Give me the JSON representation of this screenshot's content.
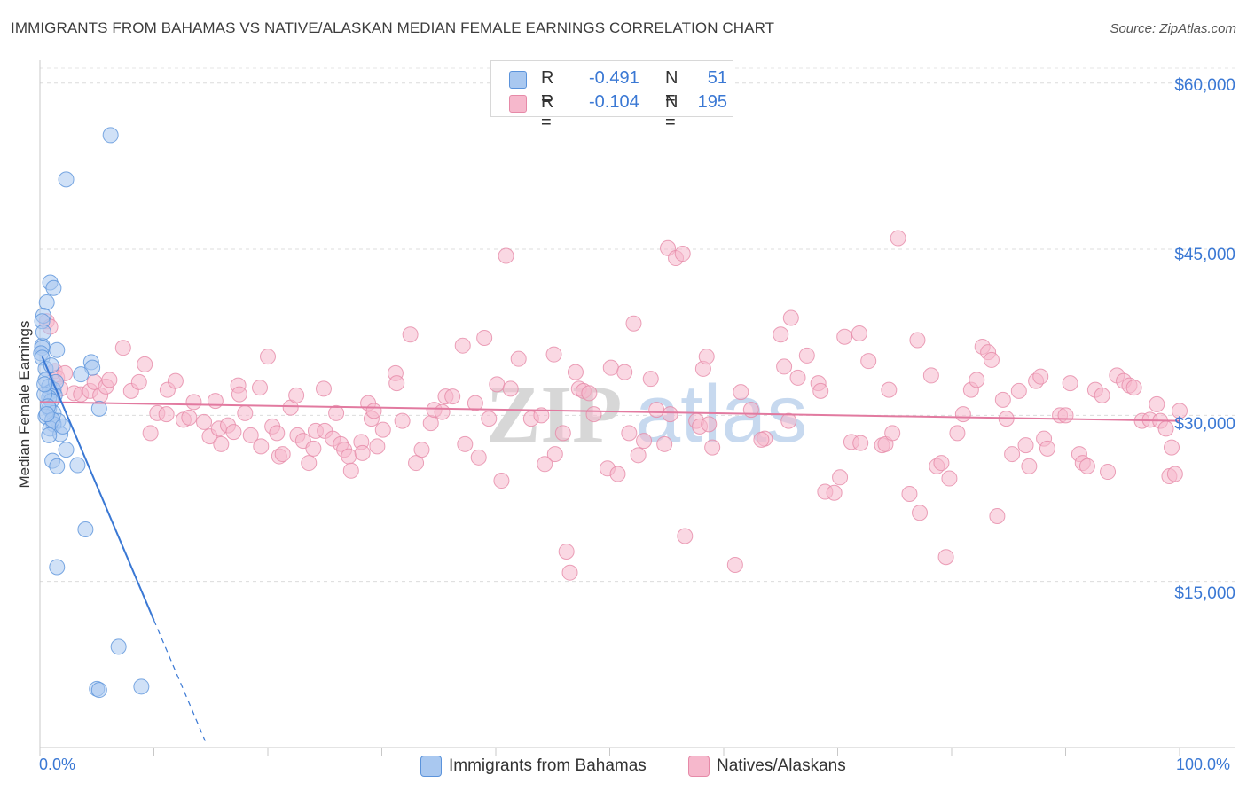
{
  "header": {
    "title": "IMMIGRANTS FROM BAHAMAS VS NATIVE/ALASKAN MEDIAN FEMALE EARNINGS CORRELATION CHART",
    "source": "Source: ZipAtlas.com"
  },
  "legend": {
    "r_label": "R =",
    "n_label": "N =",
    "rows": [
      {
        "r": "-0.491",
        "n": "51",
        "color": "#a9c8f0",
        "border": "#5b93db"
      },
      {
        "r": "-0.104",
        "n": "195",
        "color": "#f6b8cc",
        "border": "#e68aa8"
      }
    ]
  },
  "bottom_legend": [
    {
      "label": "Immigrants from Bahamas",
      "color": "#a9c8f0",
      "border": "#5b93db"
    },
    {
      "label": "Natives/Alaskans",
      "color": "#f6b8cc",
      "border": "#e68aa8"
    }
  ],
  "watermark": {
    "zip": "ZIP",
    "atlas": "atlas"
  },
  "chart_data": {
    "type": "scatter",
    "title": "IMMIGRANTS FROM BAHAMAS VS NATIVE/ALASKAN MEDIAN FEMALE EARNINGS CORRELATION CHART",
    "xlabel": "",
    "ylabel": "Median Female Earnings",
    "xlim": [
      0,
      100
    ],
    "ylim": [
      0,
      61500
    ],
    "x_tick_labels": [
      "0.0%",
      "100.0%"
    ],
    "y_ticks": [
      {
        "value": 15000,
        "label": "$15,000"
      },
      {
        "value": 30000,
        "label": "$30,000"
      },
      {
        "value": 45000,
        "label": "$45,000"
      },
      {
        "value": 60000,
        "label": "$60,000"
      }
    ],
    "grid": "horizontal dashed",
    "series": [
      {
        "name": "Immigrants from Bahamas",
        "color": "#a9c8f0",
        "edge": "#5b93db",
        "trend": {
          "x0": 0.2,
          "y0": 35300,
          "x1": 10.0,
          "y1": 11500,
          "dash_to_x": 14.5,
          "dash_to_y": 600,
          "color": "#3a78d4"
        },
        "points": [
          [
            6.2,
            55300
          ],
          [
            2.3,
            51300
          ],
          [
            0.9,
            42000
          ],
          [
            1.2,
            41500
          ],
          [
            0.6,
            40200
          ],
          [
            0.3,
            39000
          ],
          [
            0.2,
            38500
          ],
          [
            0.2,
            36300
          ],
          [
            0.2,
            36100
          ],
          [
            1.5,
            35900
          ],
          [
            0.1,
            35600
          ],
          [
            0.2,
            35200
          ],
          [
            4.5,
            34800
          ],
          [
            4.6,
            34300
          ],
          [
            0.5,
            34200
          ],
          [
            3.6,
            33700
          ],
          [
            0.5,
            33200
          ],
          [
            0.8,
            32600
          ],
          [
            1.2,
            32300
          ],
          [
            0.9,
            32100
          ],
          [
            1.3,
            31800
          ],
          [
            0.8,
            31600
          ],
          [
            1.0,
            31300
          ],
          [
            0.8,
            30600
          ],
          [
            5.2,
            30600
          ],
          [
            1.2,
            30200
          ],
          [
            0.5,
            29900
          ],
          [
            1.6,
            29500
          ],
          [
            1.2,
            29200
          ],
          [
            0.9,
            28800
          ],
          [
            1.8,
            28300
          ],
          [
            0.8,
            28200
          ],
          [
            2.3,
            26900
          ],
          [
            1.1,
            25900
          ],
          [
            3.3,
            25500
          ],
          [
            1.5,
            25400
          ],
          [
            4.0,
            19700
          ],
          [
            1.5,
            16300
          ],
          [
            6.9,
            9100
          ],
          [
            5.0,
            5300
          ],
          [
            5.2,
            5200
          ],
          [
            8.9,
            5500
          ],
          [
            0.4,
            31900
          ],
          [
            0.7,
            30800
          ],
          [
            1.1,
            29600
          ],
          [
            0.3,
            37500
          ],
          [
            1.4,
            33000
          ],
          [
            0.6,
            30100
          ],
          [
            2.0,
            29000
          ],
          [
            1.0,
            34500
          ],
          [
            0.4,
            32800
          ]
        ]
      },
      {
        "name": "Natives/Alaskans",
        "color": "#f6b8cc",
        "edge": "#e68aa8",
        "trend": {
          "x0": 0,
          "y0": 31200,
          "x1": 100,
          "y1": 29500,
          "color": "#e27aa0"
        },
        "points": [
          [
            0.6,
            38500
          ],
          [
            0.9,
            38000
          ],
          [
            1.3,
            34000
          ],
          [
            1.5,
            33400
          ],
          [
            1.8,
            32400
          ],
          [
            2.2,
            33800
          ],
          [
            3.0,
            32000
          ],
          [
            3.6,
            31900
          ],
          [
            4.4,
            32200
          ],
          [
            4.8,
            33000
          ],
          [
            5.3,
            31800
          ],
          [
            5.8,
            32600
          ],
          [
            6.1,
            33200
          ],
          [
            7.3,
            36100
          ],
          [
            8.0,
            32200
          ],
          [
            8.7,
            33000
          ],
          [
            9.2,
            34600
          ],
          [
            9.7,
            28400
          ],
          [
            10.3,
            30200
          ],
          [
            11.1,
            30100
          ],
          [
            11.2,
            32300
          ],
          [
            11.9,
            33100
          ],
          [
            12.6,
            29600
          ],
          [
            13.1,
            29800
          ],
          [
            13.5,
            31200
          ],
          [
            14.4,
            29400
          ],
          [
            14.9,
            28100
          ],
          [
            15.4,
            31300
          ],
          [
            15.7,
            28800
          ],
          [
            15.9,
            27400
          ],
          [
            16.5,
            29100
          ],
          [
            17.0,
            28500
          ],
          [
            17.4,
            32700
          ],
          [
            17.5,
            31900
          ],
          [
            18.0,
            30200
          ],
          [
            18.5,
            28200
          ],
          [
            19.3,
            32500
          ],
          [
            19.4,
            27200
          ],
          [
            20.0,
            35300
          ],
          [
            20.4,
            29000
          ],
          [
            20.8,
            28400
          ],
          [
            21.0,
            26300
          ],
          [
            21.3,
            26500
          ],
          [
            22.0,
            30700
          ],
          [
            22.5,
            31800
          ],
          [
            22.6,
            28200
          ],
          [
            23.1,
            27700
          ],
          [
            23.6,
            25700
          ],
          [
            24.0,
            27000
          ],
          [
            24.2,
            28600
          ],
          [
            24.9,
            32400
          ],
          [
            25.0,
            28600
          ],
          [
            25.7,
            27900
          ],
          [
            26.0,
            30200
          ],
          [
            26.4,
            27400
          ],
          [
            26.7,
            26900
          ],
          [
            27.1,
            26300
          ],
          [
            27.3,
            25000
          ],
          [
            28.2,
            27600
          ],
          [
            28.3,
            26600
          ],
          [
            28.8,
            31100
          ],
          [
            29.1,
            29700
          ],
          [
            29.3,
            30400
          ],
          [
            29.6,
            27200
          ],
          [
            30.1,
            28700
          ],
          [
            31.2,
            33800
          ],
          [
            31.3,
            32900
          ],
          [
            31.8,
            29500
          ],
          [
            32.5,
            37300
          ],
          [
            33.0,
            25700
          ],
          [
            33.5,
            26900
          ],
          [
            34.3,
            29300
          ],
          [
            34.6,
            30500
          ],
          [
            35.3,
            30300
          ],
          [
            35.6,
            31700
          ],
          [
            36.2,
            31700
          ],
          [
            37.1,
            36300
          ],
          [
            37.3,
            27400
          ],
          [
            38.2,
            31100
          ],
          [
            38.5,
            26200
          ],
          [
            39.0,
            37000
          ],
          [
            39.4,
            29700
          ],
          [
            40.1,
            32800
          ],
          [
            40.5,
            24100
          ],
          [
            40.9,
            44400
          ],
          [
            41.3,
            32400
          ],
          [
            42.0,
            35100
          ],
          [
            43.1,
            29700
          ],
          [
            44.0,
            30000
          ],
          [
            44.3,
            25600
          ],
          [
            45.1,
            35500
          ],
          [
            45.2,
            26500
          ],
          [
            45.9,
            28400
          ],
          [
            46.2,
            17700
          ],
          [
            46.5,
            15800
          ],
          [
            47.0,
            33900
          ],
          [
            47.3,
            32400
          ],
          [
            47.7,
            32200
          ],
          [
            48.2,
            32000
          ],
          [
            48.6,
            30100
          ],
          [
            49.8,
            25200
          ],
          [
            50.1,
            34300
          ],
          [
            50.7,
            24700
          ],
          [
            51.3,
            33900
          ],
          [
            51.7,
            28400
          ],
          [
            52.1,
            38300
          ],
          [
            52.5,
            26400
          ],
          [
            53.0,
            27700
          ],
          [
            53.6,
            33300
          ],
          [
            54.1,
            30500
          ],
          [
            54.8,
            27400
          ],
          [
            55.1,
            45100
          ],
          [
            55.3,
            30100
          ],
          [
            55.8,
            44200
          ],
          [
            56.4,
            44600
          ],
          [
            56.6,
            19100
          ],
          [
            57.6,
            29500
          ],
          [
            57.9,
            29000
          ],
          [
            58.2,
            34200
          ],
          [
            58.5,
            35300
          ],
          [
            58.7,
            29200
          ],
          [
            59.0,
            27100
          ],
          [
            61.0,
            16500
          ],
          [
            61.5,
            32100
          ],
          [
            62.4,
            30500
          ],
          [
            63.6,
            27900
          ],
          [
            63.3,
            27800
          ],
          [
            65.0,
            37300
          ],
          [
            65.3,
            34400
          ],
          [
            65.7,
            29500
          ],
          [
            65.9,
            38800
          ],
          [
            66.5,
            33400
          ],
          [
            67.3,
            35400
          ],
          [
            68.3,
            32900
          ],
          [
            68.5,
            32200
          ],
          [
            68.9,
            23100
          ],
          [
            69.7,
            23000
          ],
          [
            70.2,
            24400
          ],
          [
            70.6,
            37100
          ],
          [
            71.2,
            27600
          ],
          [
            71.9,
            37400
          ],
          [
            72.0,
            27500
          ],
          [
            72.7,
            34900
          ],
          [
            73.9,
            27300
          ],
          [
            74.2,
            27400
          ],
          [
            74.5,
            32300
          ],
          [
            74.8,
            28400
          ],
          [
            75.3,
            46000
          ],
          [
            76.3,
            22900
          ],
          [
            77.0,
            36800
          ],
          [
            77.2,
            21200
          ],
          [
            78.2,
            33600
          ],
          [
            78.7,
            25400
          ],
          [
            79.1,
            25700
          ],
          [
            79.5,
            17200
          ],
          [
            79.8,
            24300
          ],
          [
            80.5,
            28400
          ],
          [
            81.0,
            30100
          ],
          [
            81.7,
            32300
          ],
          [
            82.2,
            33200
          ],
          [
            82.7,
            36200
          ],
          [
            83.2,
            35700
          ],
          [
            83.5,
            35000
          ],
          [
            84.0,
            20900
          ],
          [
            84.5,
            31400
          ],
          [
            84.8,
            29700
          ],
          [
            85.3,
            26500
          ],
          [
            85.9,
            32200
          ],
          [
            86.5,
            27300
          ],
          [
            86.8,
            25400
          ],
          [
            87.4,
            33100
          ],
          [
            87.8,
            33500
          ],
          [
            88.1,
            27900
          ],
          [
            88.4,
            27000
          ],
          [
            89.5,
            30000
          ],
          [
            90.0,
            30000
          ],
          [
            90.4,
            32900
          ],
          [
            91.2,
            26500
          ],
          [
            91.5,
            25700
          ],
          [
            91.9,
            25400
          ],
          [
            92.6,
            32300
          ],
          [
            93.2,
            31800
          ],
          [
            93.7,
            24900
          ],
          [
            94.5,
            33600
          ],
          [
            95.1,
            33100
          ],
          [
            95.6,
            32700
          ],
          [
            96.0,
            32500
          ],
          [
            96.7,
            29500
          ],
          [
            97.4,
            29600
          ],
          [
            98.3,
            29500
          ],
          [
            98.8,
            28800
          ],
          [
            99.1,
            24500
          ],
          [
            99.3,
            27100
          ],
          [
            99.6,
            24700
          ],
          [
            100.0,
            30400
          ],
          [
            98.0,
            31000
          ]
        ]
      }
    ]
  }
}
